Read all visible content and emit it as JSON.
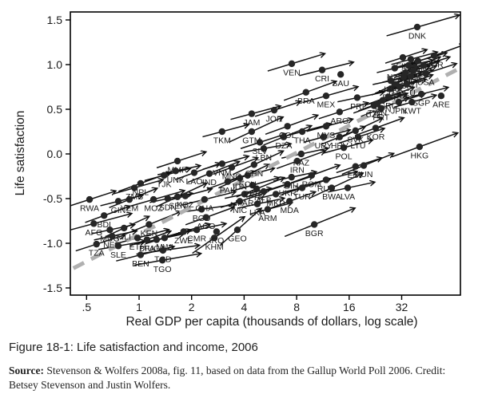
{
  "caption": "Figure 18-1: Life satisfaction and income, 2006",
  "source": {
    "label": "Source:",
    "text": " Stevenson & Wolfers 2008a, fig. 11, based on data from the Gallup World Poll 2006. Credit: Betsey Stevenson and Justin Wolfers."
  },
  "chart_data": {
    "type": "scatter",
    "title": "",
    "xlabel": "Real GDP per capita (thousands of dollars, log scale)",
    "ylabel": "Life satisfaction",
    "x_scale": "log2",
    "x_tick_labels": [
      ".5",
      "1",
      "2",
      "4",
      "8",
      "16",
      "32"
    ],
    "x_tick_values": [
      0.5,
      1,
      2,
      4,
      8,
      16,
      32
    ],
    "y_tick_labels": [
      "1.5",
      "1.0",
      "0.5",
      "0.0",
      "-0.5",
      "-1.0",
      "-1.5"
    ],
    "y_tick_values": [
      1.5,
      1.0,
      0.5,
      0.0,
      -0.5,
      -1.0,
      -1.5
    ],
    "xlim": [
      0.41,
      70
    ],
    "ylim": [
      -1.58,
      1.59
    ],
    "grid": false,
    "legend": "none",
    "trend_line": {
      "style": "dashed",
      "color": "#b0b0b0",
      "width": 5,
      "from": {
        "gdp": 0.42,
        "ls": -1.28
      },
      "to": {
        "gdp": 69,
        "ls": 0.96
      }
    },
    "point_note": "each point = country dot with up-right arrow; fields: [iso_code, gdp_thousands, life_satisfaction, arrow_angle_deg, arrow_length_px]",
    "points": [
      [
        "AFG",
        0.55,
        -0.78,
        15,
        85
      ],
      [
        "BDI",
        0.63,
        -0.69,
        20,
        60
      ],
      [
        "MDG",
        0.68,
        -0.85,
        12,
        55
      ],
      [
        "RWA",
        0.52,
        -0.51,
        18,
        60
      ],
      [
        "GIN",
        0.76,
        -0.53,
        14,
        55
      ],
      [
        "YEM",
        0.88,
        -0.51,
        22,
        65
      ],
      [
        "MOZ",
        1.21,
        -0.51,
        16,
        70
      ],
      [
        "MLI",
        0.82,
        -0.83,
        25,
        60
      ],
      [
        "NER",
        0.7,
        -0.92,
        12,
        55
      ],
      [
        "TZA",
        0.57,
        -1.01,
        18,
        65
      ],
      [
        "SLE",
        0.76,
        -1.03,
        10,
        60
      ],
      [
        "ETH",
        0.98,
        -0.94,
        15,
        70
      ],
      [
        "BFA",
        1.11,
        -0.96,
        20,
        55
      ],
      [
        "UGA",
        1.26,
        -0.96,
        12,
        60
      ],
      [
        "MWI",
        1.4,
        -0.94,
        17,
        60
      ],
      [
        "KEN",
        1.14,
        -0.79,
        22,
        75
      ],
      [
        "TCD",
        1.37,
        -1.08,
        8,
        80
      ],
      [
        "BEN",
        1.02,
        -1.13,
        14,
        75
      ],
      [
        "TGO",
        1.36,
        -1.19,
        10,
        85
      ],
      [
        "ZMB",
        0.94,
        -0.38,
        16,
        65
      ],
      [
        "NPL",
        1.02,
        -0.33,
        20,
        70
      ],
      [
        "SDN",
        1.46,
        -0.5,
        12,
        55
      ],
      [
        "SEN",
        1.66,
        -0.48,
        25,
        70
      ],
      [
        "KGZ",
        1.84,
        -0.47,
        15,
        60
      ],
      [
        "MMR",
        1.66,
        -0.08,
        18,
        65
      ],
      [
        "UNK",
        1.62,
        -0.19,
        12,
        55
      ],
      [
        "LAO",
        2.07,
        -0.21,
        20,
        60
      ],
      [
        "TJK",
        1.39,
        -0.24,
        15,
        60
      ],
      [
        "IND",
        2.53,
        -0.22,
        22,
        70
      ],
      [
        "BGD",
        2.28,
        -0.62,
        8,
        75
      ],
      [
        "GHA",
        2.37,
        -0.51,
        14,
        70
      ],
      [
        "CMR",
        2.14,
        -0.85,
        12,
        65
      ],
      [
        "ZWE",
        1.8,
        -0.87,
        16,
        60
      ],
      [
        "AGO",
        2.42,
        -0.71,
        20,
        65
      ],
      [
        "KHM",
        2.7,
        -0.94,
        35,
        80
      ],
      [
        "IRQ",
        2.78,
        -0.87,
        0,
        0
      ],
      [
        "GEO",
        3.66,
        -0.85,
        42,
        70
      ],
      [
        "NIC",
        3.78,
        -0.53,
        18,
        60
      ],
      [
        "LKA",
        4.76,
        -0.56,
        12,
        60
      ],
      [
        "ARM",
        5.46,
        -0.62,
        15,
        55
      ],
      [
        "MDA",
        7.28,
        -0.53,
        20,
        60
      ],
      [
        "MKD",
        6.08,
        -0.45,
        14,
        55
      ],
      [
        "ALB",
        5.18,
        -0.42,
        18,
        55
      ],
      [
        "MAR",
        4.02,
        -0.45,
        12,
        60
      ],
      [
        "PHL",
        4.72,
        -0.39,
        22,
        65
      ],
      [
        "PER",
        4.47,
        -0.35,
        16,
        60
      ],
      [
        "PAK",
        3.22,
        -0.31,
        20,
        65
      ],
      [
        "IDN",
        3.78,
        -0.27,
        25,
        70
      ],
      [
        "ECU",
        4.19,
        -0.24,
        15,
        60
      ],
      [
        "UKR",
        7.09,
        -0.34,
        18,
        60
      ],
      [
        "BIH",
        7.48,
        -0.26,
        12,
        55
      ],
      [
        "ROM",
        9.75,
        -0.24,
        20,
        65
      ],
      [
        "RUS",
        11.8,
        -0.29,
        15,
        70
      ],
      [
        "TUR",
        8.6,
        -0.38,
        18,
        65
      ],
      [
        "BWA",
        12.7,
        -0.38,
        25,
        75
      ],
      [
        "LVA",
        15.7,
        -0.38,
        12,
        60
      ],
      [
        "BGR",
        10.1,
        -0.79,
        22,
        95
      ],
      [
        "VNM",
        2.99,
        -0.11,
        16,
        60
      ],
      [
        "MNG",
        3.4,
        -0.15,
        20,
        60
      ],
      [
        "CHN",
        4.56,
        -0.12,
        25,
        70
      ],
      [
        "TKM",
        2.99,
        0.25,
        15,
        60
      ],
      [
        "LBN",
        5.18,
        0.06,
        10,
        60
      ],
      [
        "SLV",
        4.92,
        0.13,
        18,
        60
      ],
      [
        "DZA",
        6.74,
        0.19,
        22,
        65
      ],
      [
        "THA",
        8.61,
        0.25,
        15,
        65
      ],
      [
        "COL",
        7.09,
        0.31,
        20,
        70
      ],
      [
        "GTM",
        4.42,
        0.25,
        25,
        75
      ],
      [
        "JAM",
        4.42,
        0.45,
        15,
        65
      ],
      [
        "JOR",
        5.95,
        0.49,
        18,
        60
      ],
      [
        "KAZ",
        8.5,
        0.0,
        12,
        60
      ],
      [
        "IRN",
        8.06,
        -0.08,
        20,
        65
      ],
      [
        "POL",
        14.9,
        0.07,
        15,
        65
      ],
      [
        "EST",
        17.4,
        -0.14,
        18,
        60
      ],
      [
        "HUN",
        19.4,
        -0.13,
        22,
        70
      ],
      [
        "HKG",
        40.5,
        0.08,
        20,
        88
      ],
      [
        "VEN",
        7.5,
        1.01,
        17,
        75
      ],
      [
        "CRI",
        11.2,
        0.94,
        14,
        70
      ],
      [
        "SAU",
        14.3,
        0.89,
        0,
        0
      ],
      [
        "BRA",
        9.05,
        0.69,
        20,
        70
      ],
      [
        "MEX",
        11.8,
        0.65,
        16,
        72
      ],
      [
        "PRI",
        17.8,
        0.63,
        12,
        60
      ],
      [
        "ARG",
        14.1,
        0.47,
        18,
        65
      ],
      [
        "CZE",
        22.2,
        0.54,
        20,
        65
      ],
      [
        "URY",
        11.4,
        0.19,
        15,
        60
      ],
      [
        "HRV",
        14.1,
        0.19,
        22,
        60
      ],
      [
        "LTU",
        18.0,
        0.19,
        18,
        60
      ],
      [
        "SVK",
        17.4,
        0.26,
        25,
        65
      ],
      [
        "MYS",
        11.8,
        0.31,
        15,
        60
      ],
      [
        "KOR",
        22.7,
        0.29,
        20,
        65
      ],
      [
        "ARE",
        53.9,
        0.65,
        0,
        0
      ],
      [
        "DNK",
        39.3,
        1.42,
        16,
        95
      ],
      [
        "NOR",
        49.1,
        1.1,
        20,
        70
      ],
      [
        "SWE",
        36.1,
        1.06,
        15,
        60
      ],
      [
        "FIN",
        32.5,
        1.08,
        18,
        55
      ],
      [
        "CHE",
        38.0,
        0.97,
        22,
        60
      ],
      [
        "NLD",
        35.0,
        0.99,
        12,
        55
      ],
      [
        "CAN",
        39.7,
        1.04,
        16,
        65
      ],
      [
        "AUS",
        37.2,
        0.93,
        20,
        60
      ],
      [
        "NZL",
        29.2,
        0.96,
        14,
        55
      ],
      [
        "IRL",
        42.7,
        0.99,
        18,
        60
      ],
      [
        "BEL",
        33.6,
        0.91,
        15,
        55
      ],
      [
        "AUT",
        36.1,
        0.87,
        22,
        60
      ],
      [
        "USA",
        44.0,
        0.9,
        18,
        70
      ],
      [
        "GBR",
        32.8,
        0.86,
        14,
        65
      ],
      [
        "DEU",
        34.2,
        0.78,
        20,
        60
      ],
      [
        "FRA",
        31.1,
        0.75,
        16,
        60
      ],
      [
        "ITA",
        29.2,
        0.78,
        25,
        65
      ],
      [
        "ESP",
        27.7,
        0.73,
        18,
        60
      ],
      [
        "ISR",
        27.7,
        0.82,
        12,
        55
      ],
      [
        "GRC",
        26.8,
        0.64,
        20,
        60
      ],
      [
        "SVN",
        24.9,
        0.6,
        15,
        55
      ],
      [
        "PRT",
        24.4,
        0.51,
        22,
        65
      ],
      [
        "JPN",
        30.8,
        0.58,
        18,
        60
      ],
      [
        "SGP",
        41.5,
        0.67,
        14,
        60
      ],
      [
        "TWN",
        23.2,
        0.56,
        20,
        60
      ],
      [
        "KWT",
        36.6,
        0.58,
        16,
        55
      ]
    ]
  }
}
